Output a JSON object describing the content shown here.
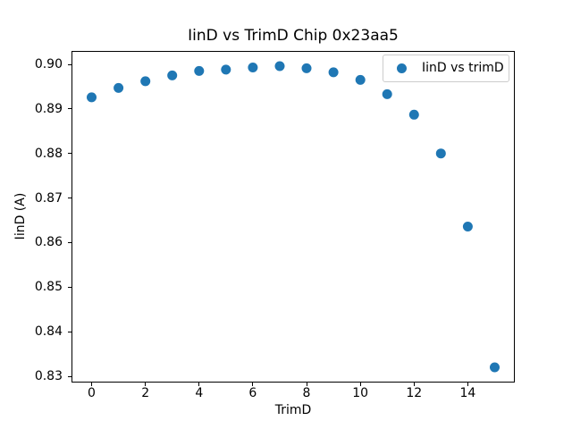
{
  "chart_data": {
    "type": "scatter",
    "title": "IinD vs TrimD Chip 0x23aa5",
    "xlabel": "TrimD",
    "ylabel": "IinD (A)",
    "legend": {
      "label": "IinD vs trimD",
      "position": "upper right"
    },
    "marker_color": "#1f77b4",
    "x": [
      0,
      1,
      2,
      3,
      4,
      5,
      6,
      7,
      8,
      9,
      10,
      11,
      12,
      13,
      14,
      15
    ],
    "y": [
      0.8926,
      0.8947,
      0.8962,
      0.8975,
      0.8985,
      0.8988,
      0.8993,
      0.8996,
      0.8991,
      0.8982,
      0.8965,
      0.8933,
      0.8887,
      0.88,
      0.8636,
      0.832
    ],
    "xlim": [
      -0.75,
      15.75
    ],
    "ylim": [
      0.8286,
      0.903
    ],
    "x_ticks": {
      "values": [
        0,
        2,
        4,
        6,
        8,
        10,
        12,
        14
      ],
      "labels": [
        "0",
        "2",
        "4",
        "6",
        "8",
        "10",
        "12",
        "14"
      ]
    },
    "y_ticks": {
      "values": [
        0.83,
        0.84,
        0.85,
        0.86,
        0.87,
        0.88,
        0.89,
        0.9
      ],
      "labels": [
        "0.83",
        "0.84",
        "0.85",
        "0.86",
        "0.87",
        "0.88",
        "0.89",
        "0.90"
      ]
    },
    "grid": false,
    "marker_radius_px": 5.5
  }
}
